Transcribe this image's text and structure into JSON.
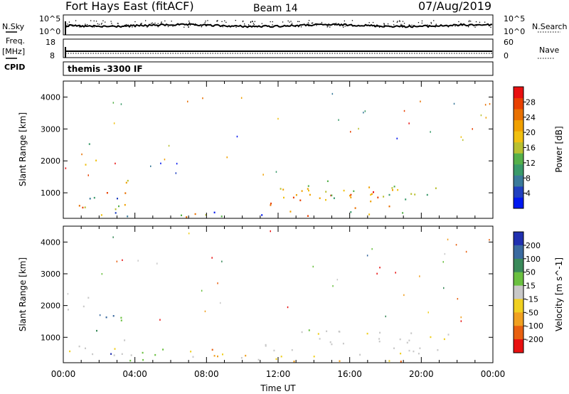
{
  "header": {
    "station": "Fort Hays East (fitACF)",
    "beam": "Beam 14",
    "date": "07/Aug/2019"
  },
  "side_labels": {
    "nsky": "N.Sky",
    "freq_line1": "Freq.",
    "freq_line2": "[MHz]",
    "cpid": "CPID",
    "nsearch": "N.Search",
    "nave": "Nave"
  },
  "cpid_text": "themis -3300 IF",
  "panel_ticks": {
    "noise_left": [
      "10^5",
      "10^0"
    ],
    "noise_right": [
      "10^5",
      "10^0"
    ],
    "freq_left": [
      "18",
      "8"
    ],
    "nave_right": [
      "60",
      "0"
    ]
  },
  "chart_data": [
    {
      "type": "heatmap",
      "name_key": "power",
      "ylabel": "Slant Range [km]",
      "y_ticks": [
        1000,
        2000,
        3000,
        4000
      ],
      "ylim": [
        200,
        4500
      ],
      "xlim": [
        0,
        24
      ],
      "colorbar": {
        "label": "Power [dB]",
        "ticks": [
          "4",
          "8",
          "12",
          "16",
          "20",
          "24",
          "28"
        ],
        "colors": [
          "#0018f0",
          "#2040c0",
          "#3a7a9a",
          "#3a9a6a",
          "#55b04a",
          "#b8c030",
          "#f0c010",
          "#f0a000",
          "#e87000",
          "#e84000",
          "#e81010"
        ]
      },
      "regions": [
        {
          "t0": 0.1,
          "t1": 1.8,
          "r0": 1800,
          "r1": 2150,
          "level": "mid"
        },
        {
          "t0": 1.3,
          "t1": 2.0,
          "r0": 2200,
          "r1": 2600,
          "level": "low"
        },
        {
          "t0": 2.0,
          "t1": 3.8,
          "r0": 900,
          "r1": 1500,
          "level": "high"
        },
        {
          "t0": 0.1,
          "t1": 3.5,
          "r0": 250,
          "r1": 1100,
          "level": "mixed"
        },
        {
          "t0": 3.5,
          "t1": 11.5,
          "r0": 200,
          "r1": 500,
          "level": "mixed"
        },
        {
          "t0": 11.5,
          "t1": 18.5,
          "r0": 450,
          "r1": 1200,
          "level": "high"
        },
        {
          "t0": 11.0,
          "t1": 21.5,
          "r0": 800,
          "r1": 1400,
          "level": "mid"
        },
        {
          "t0": 10.0,
          "t1": 19.0,
          "r0": 200,
          "r1": 450,
          "level": "mixed"
        }
      ]
    },
    {
      "type": "heatmap",
      "name_key": "velocity",
      "ylabel": "Slant Range [km]",
      "xlabel": "Time UT",
      "x_ticks": [
        "00:00",
        "04:00",
        "08:00",
        "12:00",
        "16:00",
        "20:00",
        "00:00"
      ],
      "y_ticks": [
        1000,
        2000,
        3000,
        4000
      ],
      "ylim": [
        200,
        4500
      ],
      "xlim": [
        0,
        24
      ],
      "colorbar": {
        "label": "Velocity [m s^-1]",
        "ticks": [
          "200",
          "100",
          "50",
          "15",
          "-15",
          "-50",
          "-100",
          "-200"
        ],
        "colors": [
          "#2030b0",
          "#3a6aa0",
          "#3a8a5a",
          "#6ac040",
          "#c8c8c8",
          "#f0d020",
          "#f0a020",
          "#e86010",
          "#e81010"
        ]
      },
      "regions": [
        {
          "t0": 0.1,
          "t1": 1.8,
          "r0": 1800,
          "r1": 2150,
          "level": "gray"
        },
        {
          "t0": 1.3,
          "t1": 2.0,
          "r0": 2200,
          "r1": 2600,
          "level": "gray"
        },
        {
          "t0": 1.8,
          "t1": 3.8,
          "r0": 1150,
          "r1": 1750,
          "level": "green"
        },
        {
          "t0": 0.1,
          "t1": 3.6,
          "r0": 450,
          "r1": 1050,
          "level": "gray"
        },
        {
          "t0": 2.5,
          "t1": 6.5,
          "r0": 250,
          "r1": 700,
          "level": "green"
        },
        {
          "t0": 6.0,
          "t1": 8.5,
          "r0": 250,
          "r1": 650,
          "level": "orange"
        },
        {
          "t0": 8.5,
          "t1": 20.0,
          "r0": 200,
          "r1": 500,
          "level": "orange"
        },
        {
          "t0": 11.0,
          "t1": 21.5,
          "r0": 500,
          "r1": 1300,
          "level": "gray"
        }
      ]
    }
  ]
}
